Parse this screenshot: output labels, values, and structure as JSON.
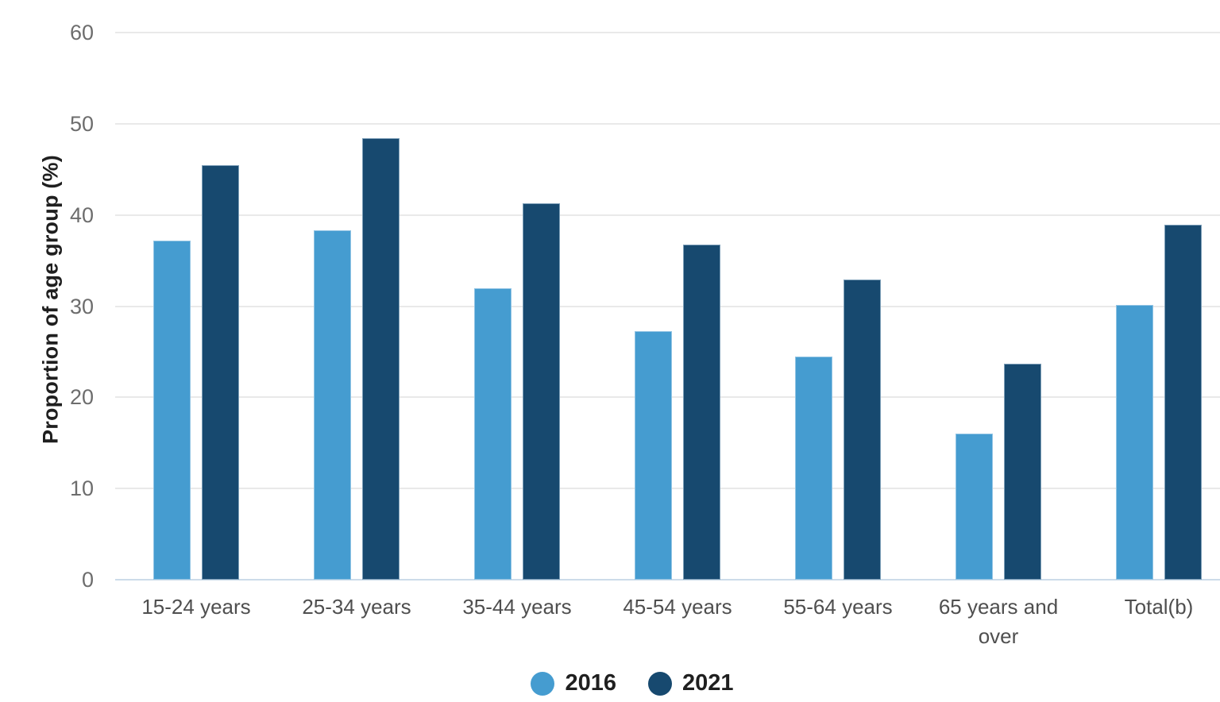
{
  "chart_data": {
    "type": "bar",
    "title": "",
    "xlabel": "",
    "ylabel": "Proportion of age group (%)",
    "ylim": [
      0,
      60
    ],
    "yticks": [
      0,
      10,
      20,
      30,
      40,
      50,
      60
    ],
    "grid": "horizontal gridlines on",
    "legend_position": "bottom center",
    "categories": [
      "15-24 years",
      "25-34 years",
      "35-44 years",
      "45-54 years",
      "55-64 years",
      "65 years and over",
      "Total(b)"
    ],
    "series": [
      {
        "name": "2016",
        "color": "#459CD0",
        "values": [
          37.2,
          38.3,
          32.0,
          27.3,
          24.5,
          16.0,
          30.1
        ]
      },
      {
        "name": "2021",
        "color": "#17496F",
        "values": [
          45.5,
          48.4,
          41.3,
          36.8,
          32.9,
          23.7,
          38.9
        ]
      }
    ]
  },
  "colors": {
    "background": "#ffffff",
    "grid_line": "#e9e9e9",
    "baseline": "#ccdbe9",
    "tick_label": "#6d6d6d",
    "category_label": "#4f4f4f",
    "axis_title": "#1f1f1f",
    "legend_label": "#1f1f1f"
  }
}
